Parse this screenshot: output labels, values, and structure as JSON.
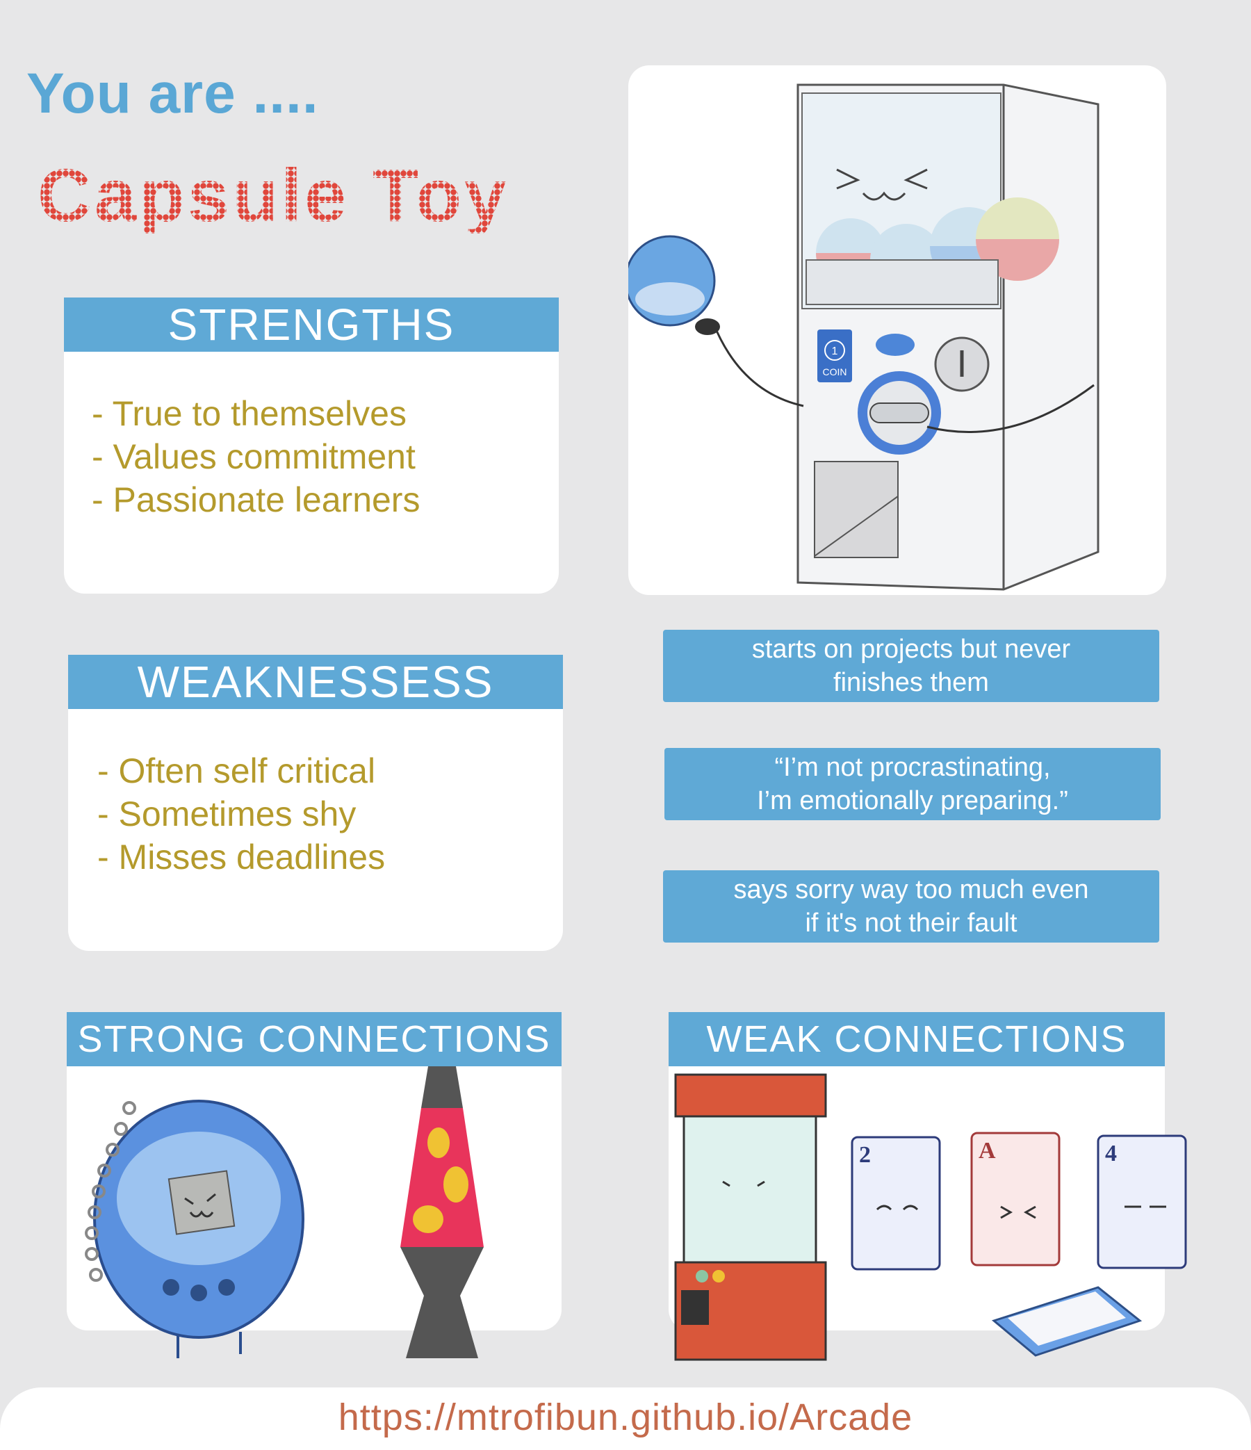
{
  "intro": "You are ....",
  "result_title": "Capsule Toy",
  "strengths": {
    "header": "STRENGTHS",
    "items": [
      "- True to themselves",
      "- Values commitment",
      "- Passionate learners"
    ]
  },
  "weaknesses": {
    "header": "WEAKNESSESS",
    "items": [
      "- Often self critical",
      "- Sometimes shy",
      "- Misses deadlines"
    ]
  },
  "quotes": [
    [
      "starts on projects but never",
      "finishes them"
    ],
    [
      "“I’m not procrastinating,",
      "I’m emotionally preparing.”"
    ],
    [
      "says sorry way too much even",
      "if it's not their fault"
    ]
  ],
  "strong_connections": {
    "header": "STRONG CONNECTIONS"
  },
  "weak_connections": {
    "header": "WEAK CONNECTIONS"
  },
  "machine": {
    "coin_label": "COIN",
    "coin_number": "1"
  },
  "cards": [
    "2",
    "A",
    "4"
  ],
  "footer_url": "https://mtrofibun.github.io/Arcade",
  "colors": {
    "accent_blue": "#5fa9d6",
    "title_red": "#e0463b",
    "list_gold": "#b49a2c",
    "url_orange": "#c46a4b"
  }
}
